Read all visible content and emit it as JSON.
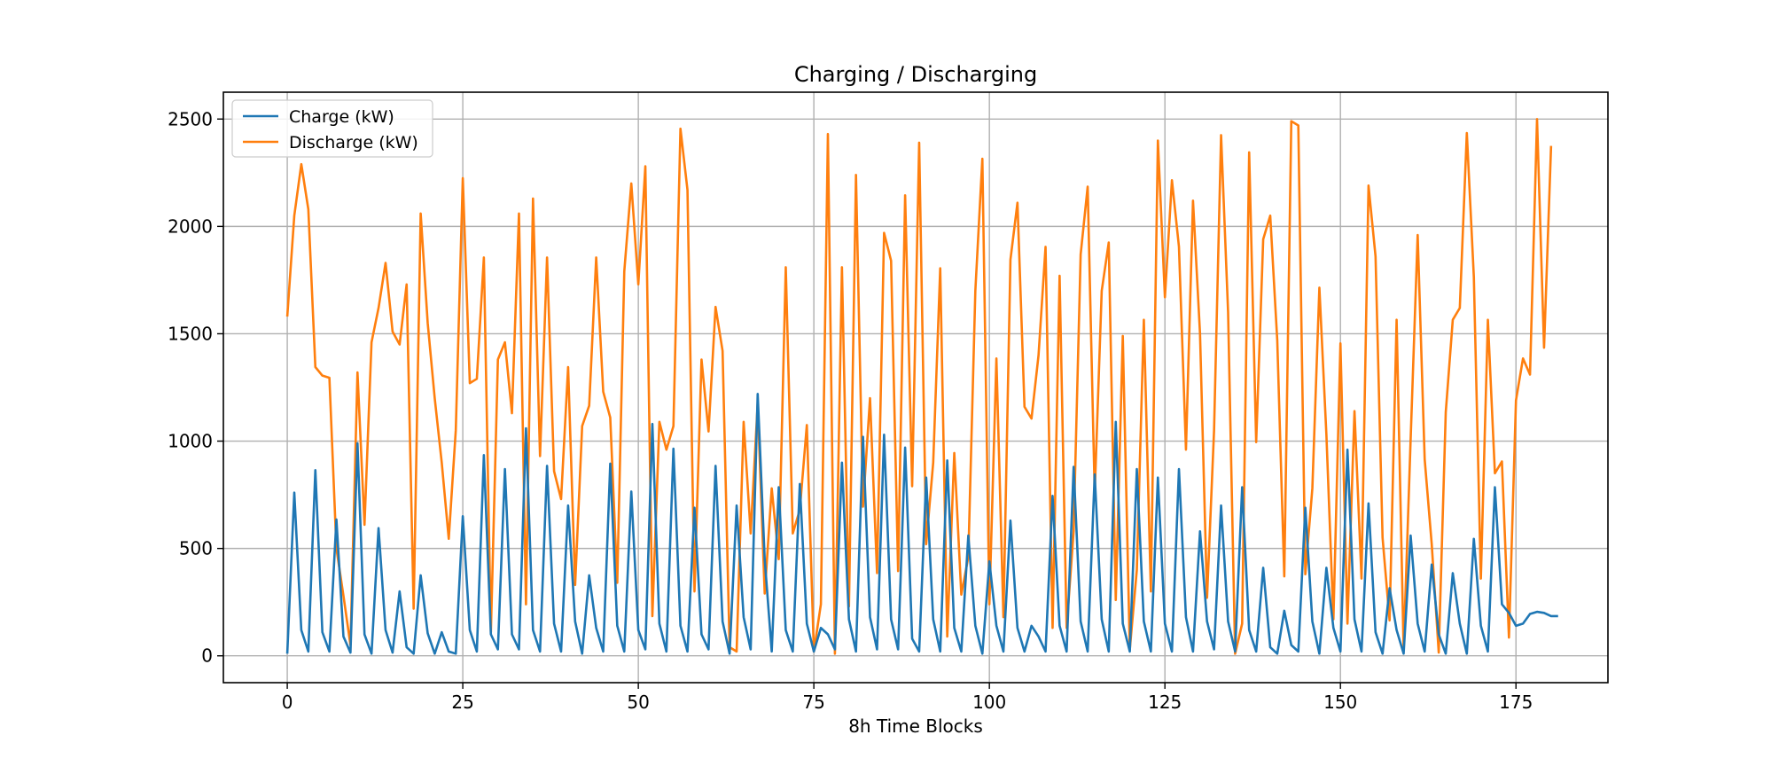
{
  "chart_data": {
    "type": "line",
    "title": "Charging / Discharging",
    "xlabel": "8h Time Blocks",
    "ylabel": "",
    "xlim": [
      -9.1,
      188.1
    ],
    "ylim": [
      -125,
      2625
    ],
    "xticks": [
      0,
      25,
      50,
      75,
      100,
      125,
      150,
      175
    ],
    "yticks": [
      0,
      500,
      1000,
      1500,
      2000,
      2500
    ],
    "grid": true,
    "legend_position": "upper left",
    "series": [
      {
        "name": "Charge (kW)",
        "color": "#1f77b4",
        "values": [
          10,
          760,
          120,
          20,
          865,
          110,
          20,
          635,
          90,
          15,
          990,
          100,
          10,
          595,
          120,
          15,
          300,
          40,
          10,
          375,
          105,
          10,
          110,
          20,
          10,
          650,
          120,
          20,
          935,
          100,
          30,
          870,
          100,
          30,
          1060,
          120,
          20,
          885,
          150,
          20,
          700,
          160,
          10,
          375,
          130,
          20,
          895,
          140,
          20,
          765,
          120,
          30,
          1080,
          150,
          20,
          965,
          140,
          20,
          690,
          100,
          30,
          885,
          160,
          10,
          700,
          180,
          30,
          1220,
          450,
          20,
          785,
          120,
          20,
          800,
          150,
          20,
          130,
          100,
          30,
          900,
          170,
          20,
          1020,
          180,
          30,
          1030,
          170,
          30,
          970,
          80,
          20,
          830,
          170,
          20,
          910,
          130,
          20,
          560,
          140,
          10,
          440,
          140,
          20,
          630,
          130,
          20,
          140,
          90,
          20,
          745,
          140,
          20,
          880,
          160,
          20,
          845,
          170,
          20,
          1090,
          150,
          20,
          870,
          160,
          20,
          830,
          150,
          20,
          870,
          180,
          20,
          580,
          160,
          30,
          700,
          160,
          20,
          785,
          120,
          20,
          410,
          40,
          10,
          210,
          50,
          20,
          690,
          160,
          10,
          410,
          130,
          20,
          960,
          170,
          20,
          710,
          110,
          10,
          315,
          120,
          10,
          560,
          150,
          20,
          425,
          100,
          10,
          385,
          150,
          10,
          545,
          140,
          20,
          785,
          240,
          200,
          140,
          150,
          195,
          205,
          200,
          185,
          185
        ]
      },
      {
        "name": "Discharge (kW)",
        "color": "#ff7f0e",
        "values": [
          1580,
          2050,
          2290,
          2080,
          1345,
          1305,
          1295,
          500,
          280,
          50,
          1320,
          610,
          1460,
          1620,
          1830,
          1510,
          1450,
          1730,
          220,
          2060,
          1550,
          1200,
          900,
          545,
          1050,
          2225,
          1270,
          1290,
          1855,
          110,
          1380,
          1460,
          1130,
          2060,
          240,
          2130,
          930,
          1855,
          860,
          730,
          1345,
          330,
          1070,
          1165,
          1855,
          1230,
          1110,
          340,
          1790,
          2200,
          1730,
          2280,
          185,
          1090,
          960,
          1070,
          2455,
          2170,
          300,
          1380,
          1045,
          1625,
          1420,
          40,
          20,
          1090,
          570,
          1175,
          290,
          780,
          450,
          1810,
          570,
          680,
          1075,
          20,
          240,
          2430,
          10,
          1810,
          230,
          2240,
          695,
          1200,
          385,
          1970,
          1840,
          395,
          2145,
          790,
          2390,
          520,
          900,
          1805,
          90,
          945,
          285,
          460,
          1700,
          2315,
          240,
          1385,
          180,
          1845,
          2110,
          1160,
          1105,
          1400,
          1905,
          130,
          1770,
          130,
          580,
          1870,
          2185,
          755,
          1700,
          1925,
          260,
          1490,
          30,
          400,
          1565,
          300,
          2400,
          1670,
          2215,
          1905,
          960,
          2120,
          1500,
          270,
          1050,
          2425,
          1600,
          10,
          150,
          2345,
          995,
          1940,
          2050,
          1470,
          370,
          2490,
          2470,
          380,
          780,
          1715,
          1030,
          170,
          1455,
          150,
          1140,
          360,
          2190,
          1860,
          550,
          165,
          1565,
          30,
          1010,
          1960,
          915,
          520,
          15,
          1135,
          1565,
          1620,
          2435,
          1765,
          360,
          1565,
          850,
          905,
          85,
          1190,
          1385,
          1310,
          2500,
          1435,
          2375
        ]
      }
    ]
  }
}
